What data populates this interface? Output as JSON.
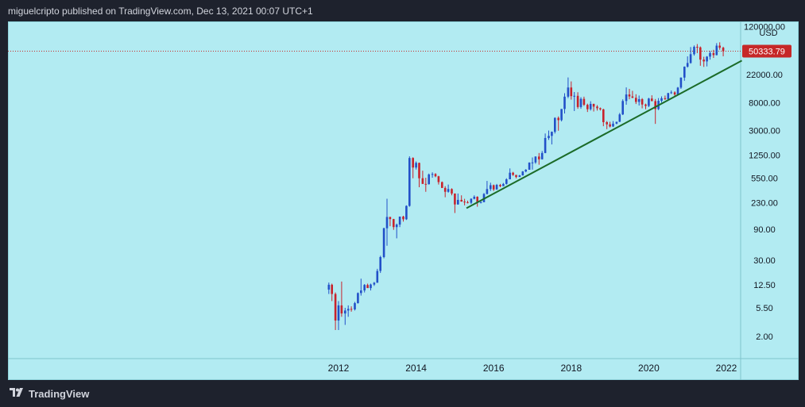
{
  "header": {
    "text": "miguelcripto published on TradingView.com, Dec 13, 2021 00:07 UTC+1"
  },
  "footer": {
    "brand": "TradingView"
  },
  "colors": {
    "background": "#b2ebf2",
    "up": "#2250c8",
    "down": "#c8232c",
    "trendline": "#1b6b28",
    "price_badge": "#c62828"
  },
  "chart_data": {
    "type": "candlestick",
    "scale": "log",
    "currency_label": "USD",
    "last_price": 50333.79,
    "last_price_label": "50333.79",
    "y_ticks": [
      "120000.00",
      "22000.00",
      "8000.00",
      "3000.00",
      "1250.00",
      "550.00",
      "230.00",
      "90.00",
      "30.00",
      "12.50",
      "5.50",
      "2.00"
    ],
    "x_ticks": [
      "2012",
      "2014",
      "2016",
      "2018",
      "2020",
      "2022"
    ],
    "ylim": [
      1.2,
      145000
    ],
    "trendline": [
      [
        2015.3,
        190
      ],
      [
        2022.4,
        36000
      ]
    ],
    "candles": [
      [
        2011.75,
        10.5,
        13.5,
        9,
        12.5
      ],
      [
        2011.83,
        12.5,
        13,
        7,
        9
      ],
      [
        2011.92,
        9,
        9.5,
        2.5,
        3.5
      ],
      [
        2012.0,
        3.5,
        7,
        2.5,
        6
      ],
      [
        2012.08,
        6,
        14,
        4,
        4.5
      ],
      [
        2012.17,
        4.5,
        5.5,
        3,
        5
      ],
      [
        2012.25,
        5,
        6,
        4,
        5.3
      ],
      [
        2012.33,
        5.3,
        5.8,
        4.8,
        5.2
      ],
      [
        2012.42,
        5.2,
        6.8,
        5,
        6.5
      ],
      [
        2012.5,
        6.5,
        9.5,
        6.4,
        9.3
      ],
      [
        2012.58,
        9.3,
        15.5,
        8.5,
        10.2
      ],
      [
        2012.67,
        10.2,
        12.8,
        9.5,
        12.4
      ],
      [
        2012.75,
        12.4,
        13,
        11.5,
        11.1
      ],
      [
        2012.83,
        11.1,
        13,
        10.2,
        12.6
      ],
      [
        2012.92,
        12.6,
        13.8,
        12,
        13.4
      ],
      [
        2013.0,
        13.4,
        22,
        13.5,
        20.4
      ],
      [
        2013.08,
        20.4,
        35,
        19,
        33.4
      ],
      [
        2013.17,
        33.4,
        95,
        32,
        93
      ],
      [
        2013.25,
        93,
        266,
        50,
        139
      ],
      [
        2013.33,
        139,
        140,
        100,
        129
      ],
      [
        2013.42,
        129,
        130,
        88,
        97
      ],
      [
        2013.5,
        97,
        110,
        65,
        106
      ],
      [
        2013.58,
        106,
        125,
        97,
        141
      ],
      [
        2013.67,
        141,
        145,
        118,
        128
      ],
      [
        2013.75,
        128,
        210,
        125,
        206
      ],
      [
        2013.83,
        206,
        1200,
        200,
        1130
      ],
      [
        2013.92,
        1130,
        1160,
        550,
        805
      ],
      [
        2014.0,
        805,
        1000,
        750,
        950
      ],
      [
        2014.08,
        950,
        960,
        400,
        550
      ],
      [
        2014.17,
        550,
        720,
        450,
        450
      ],
      [
        2014.25,
        450,
        560,
        340,
        445
      ],
      [
        2014.33,
        445,
        650,
        440,
        630
      ],
      [
        2014.42,
        630,
        680,
        560,
        640
      ],
      [
        2014.5,
        640,
        660,
        570,
        590
      ],
      [
        2014.58,
        590,
        600,
        440,
        480
      ],
      [
        2014.67,
        480,
        490,
        390,
        390
      ],
      [
        2014.75,
        390,
        415,
        280,
        340
      ],
      [
        2014.83,
        340,
        440,
        330,
        375
      ],
      [
        2014.92,
        375,
        385,
        300,
        320
      ],
      [
        2015.0,
        320,
        320,
        160,
        217
      ],
      [
        2015.08,
        217,
        320,
        215,
        255
      ],
      [
        2015.17,
        255,
        300,
        240,
        240
      ],
      [
        2015.25,
        240,
        265,
        210,
        235
      ],
      [
        2015.33,
        235,
        248,
        225,
        230
      ],
      [
        2015.42,
        230,
        270,
        220,
        265
      ],
      [
        2015.5,
        265,
        300,
        260,
        285
      ],
      [
        2015.58,
        285,
        290,
        200,
        230
      ],
      [
        2015.67,
        230,
        245,
        225,
        235
      ],
      [
        2015.75,
        235,
        325,
        235,
        315
      ],
      [
        2015.83,
        315,
        500,
        310,
        375
      ],
      [
        2015.92,
        375,
        470,
        350,
        430
      ],
      [
        2016.0,
        430,
        440,
        350,
        370
      ],
      [
        2016.08,
        370,
        450,
        365,
        435
      ],
      [
        2016.17,
        435,
        450,
        400,
        415
      ],
      [
        2016.25,
        415,
        465,
        415,
        450
      ],
      [
        2016.33,
        450,
        550,
        440,
        530
      ],
      [
        2016.42,
        530,
        780,
        530,
        670
      ],
      [
        2016.5,
        670,
        690,
        600,
        620
      ],
      [
        2016.58,
        620,
        620,
        550,
        575
      ],
      [
        2016.67,
        575,
        620,
        575,
        610
      ],
      [
        2016.75,
        610,
        710,
        605,
        700
      ],
      [
        2016.83,
        700,
        760,
        680,
        745
      ],
      [
        2016.92,
        745,
        970,
        745,
        960
      ],
      [
        2017.0,
        960,
        1150,
        750,
        965
      ],
      [
        2017.08,
        965,
        1200,
        920,
        1190
      ],
      [
        2017.17,
        1190,
        1350,
        890,
        1080
      ],
      [
        2017.25,
        1080,
        1450,
        1070,
        1350
      ],
      [
        2017.33,
        1350,
        2700,
        1340,
        2300
      ],
      [
        2017.42,
        2300,
        3000,
        2150,
        2480
      ],
      [
        2017.5,
        2480,
        2900,
        1830,
        2870
      ],
      [
        2017.58,
        2870,
        4800,
        2700,
        4700
      ],
      [
        2017.67,
        4700,
        4950,
        2980,
        4340
      ],
      [
        2017.75,
        4340,
        6470,
        4150,
        6450
      ],
      [
        2017.83,
        6450,
        11300,
        5500,
        10000
      ],
      [
        2017.92,
        10000,
        19800,
        9500,
        13850
      ],
      [
        2018.0,
        13850,
        17200,
        9000,
        10200
      ],
      [
        2018.08,
        10200,
        11800,
        6000,
        10300
      ],
      [
        2018.17,
        10300,
        11700,
        6500,
        6920
      ],
      [
        2018.25,
        6920,
        9800,
        6500,
        9240
      ],
      [
        2018.33,
        9240,
        10000,
        7200,
        7490
      ],
      [
        2018.42,
        7490,
        7800,
        5800,
        6400
      ],
      [
        2018.5,
        6400,
        8500,
        6100,
        7730
      ],
      [
        2018.58,
        7730,
        7800,
        5900,
        7020
      ],
      [
        2018.67,
        7020,
        7400,
        6100,
        6630
      ],
      [
        2018.75,
        6630,
        6800,
        6100,
        6370
      ],
      [
        2018.83,
        6370,
        6500,
        3500,
        4040
      ],
      [
        2018.92,
        4040,
        4200,
        3150,
        3740
      ],
      [
        2019.0,
        3740,
        4100,
        3350,
        3460
      ],
      [
        2019.08,
        3460,
        4200,
        3400,
        3830
      ],
      [
        2019.17,
        3830,
        4100,
        3750,
        4100
      ],
      [
        2019.25,
        4100,
        5600,
        4050,
        5320
      ],
      [
        2019.33,
        5320,
        9100,
        5200,
        8570
      ],
      [
        2019.42,
        8570,
        13900,
        7500,
        10810
      ],
      [
        2019.5,
        10810,
        13200,
        9100,
        10080
      ],
      [
        2019.58,
        10080,
        12300,
        9500,
        9600
      ],
      [
        2019.67,
        9600,
        10900,
        7700,
        8300
      ],
      [
        2019.75,
        8300,
        10400,
        7300,
        9150
      ],
      [
        2019.83,
        9150,
        9500,
        6600,
        7570
      ],
      [
        2019.92,
        7570,
        7800,
        6400,
        7200
      ],
      [
        2020.0,
        7200,
        9600,
        6900,
        9350
      ],
      [
        2020.08,
        9350,
        10500,
        8500,
        8540
      ],
      [
        2020.17,
        8540,
        9200,
        3800,
        6420
      ],
      [
        2020.25,
        6420,
        9500,
        6200,
        8630
      ],
      [
        2020.33,
        8630,
        10100,
        8100,
        9450
      ],
      [
        2020.42,
        9450,
        10400,
        8900,
        9140
      ],
      [
        2020.5,
        9140,
        11450,
        9000,
        11350
      ],
      [
        2020.58,
        11350,
        12450,
        11000,
        11650
      ],
      [
        2020.67,
        11650,
        12100,
        9900,
        10780
      ],
      [
        2020.75,
        10780,
        14100,
        10400,
        13800
      ],
      [
        2020.83,
        13800,
        19800,
        13200,
        19700
      ],
      [
        2020.92,
        19700,
        29300,
        17600,
        28990
      ],
      [
        2021.0,
        28990,
        41900,
        28100,
        33100
      ],
      [
        2021.08,
        33100,
        58300,
        32300,
        45240
      ],
      [
        2021.17,
        45240,
        61700,
        43000,
        58800
      ],
      [
        2021.25,
        58800,
        64800,
        47000,
        57700
      ],
      [
        2021.33,
        57700,
        59500,
        30000,
        37300
      ],
      [
        2021.42,
        37300,
        41300,
        28800,
        35000
      ],
      [
        2021.5,
        35000,
        42300,
        29300,
        41500
      ],
      [
        2021.58,
        41500,
        50500,
        37300,
        47100
      ],
      [
        2021.67,
        47100,
        52900,
        39600,
        43800
      ],
      [
        2021.75,
        43800,
        67000,
        43300,
        61300
      ],
      [
        2021.83,
        61300,
        69000,
        53000,
        57000
      ],
      [
        2021.92,
        57000,
        59000,
        42000,
        50333.79
      ]
    ]
  }
}
